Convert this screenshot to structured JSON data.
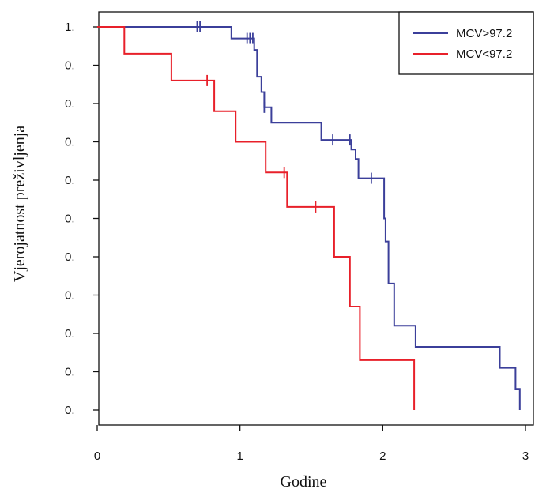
{
  "chart_data": {
    "type": "line",
    "title": "",
    "xlabel": "Godine",
    "ylabel": "Vjerojatnost preživljenja",
    "xlim": [
      0,
      3
    ],
    "ylim": [
      0,
      1
    ],
    "x_ticks": [
      "0",
      "1",
      "2",
      "3"
    ],
    "y_ticks": [
      {
        "value": 1.0,
        "label": "1."
      },
      {
        "value": 0.9,
        "label": "0."
      },
      {
        "value": 0.8,
        "label": "0."
      },
      {
        "value": 0.7,
        "label": "0."
      },
      {
        "value": 0.6,
        "label": "0."
      },
      {
        "value": 0.5,
        "label": "0."
      },
      {
        "value": 0.4,
        "label": "0."
      },
      {
        "value": 0.3,
        "label": "0."
      },
      {
        "value": 0.2,
        "label": "0."
      },
      {
        "value": 0.1,
        "label": "0."
      },
      {
        "value": 0.0,
        "label": "0."
      }
    ],
    "grid": false,
    "legend_position": "top-right",
    "series": [
      {
        "name": "MCV>97.2",
        "color": "#3b3f9a",
        "step_points": [
          [
            0.0,
            1.0
          ],
          [
            0.94,
            1.0
          ],
          [
            0.94,
            0.97
          ],
          [
            1.1,
            0.97
          ],
          [
            1.1,
            0.94
          ],
          [
            1.12,
            0.94
          ],
          [
            1.12,
            0.87
          ],
          [
            1.15,
            0.87
          ],
          [
            1.15,
            0.83
          ],
          [
            1.17,
            0.83
          ],
          [
            1.17,
            0.79
          ],
          [
            1.22,
            0.79
          ],
          [
            1.22,
            0.75
          ],
          [
            1.57,
            0.75
          ],
          [
            1.57,
            0.705
          ],
          [
            1.78,
            0.705
          ],
          [
            1.78,
            0.68
          ],
          [
            1.81,
            0.68
          ],
          [
            1.81,
            0.655
          ],
          [
            1.83,
            0.655
          ],
          [
            1.83,
            0.605
          ],
          [
            2.01,
            0.605
          ],
          [
            2.01,
            0.5
          ],
          [
            2.02,
            0.5
          ],
          [
            2.02,
            0.44
          ],
          [
            2.04,
            0.44
          ],
          [
            2.04,
            0.33
          ],
          [
            2.08,
            0.33
          ],
          [
            2.08,
            0.22
          ],
          [
            2.23,
            0.22
          ],
          [
            2.23,
            0.165
          ],
          [
            2.82,
            0.165
          ],
          [
            2.82,
            0.11
          ],
          [
            2.93,
            0.11
          ],
          [
            2.93,
            0.055
          ],
          [
            2.96,
            0.055
          ],
          [
            2.96,
            0.0
          ]
        ],
        "censor_x": [
          0.7,
          0.72,
          1.05,
          1.07,
          1.09,
          1.17,
          1.65,
          1.77,
          1.92
        ]
      },
      {
        "name": "MCV<97.2",
        "color": "#e8202a",
        "step_points": [
          [
            0.0,
            1.0
          ],
          [
            0.19,
            1.0
          ],
          [
            0.19,
            0.93
          ],
          [
            0.52,
            0.93
          ],
          [
            0.52,
            0.86
          ],
          [
            0.82,
            0.86
          ],
          [
            0.82,
            0.78
          ],
          [
            0.97,
            0.78
          ],
          [
            0.97,
            0.7
          ],
          [
            1.18,
            0.7
          ],
          [
            1.18,
            0.62
          ],
          [
            1.33,
            0.62
          ],
          [
            1.33,
            0.53
          ],
          [
            1.66,
            0.53
          ],
          [
            1.66,
            0.4
          ],
          [
            1.77,
            0.4
          ],
          [
            1.77,
            0.27
          ],
          [
            1.84,
            0.27
          ],
          [
            1.84,
            0.13
          ],
          [
            2.22,
            0.13
          ],
          [
            2.22,
            0.0
          ]
        ],
        "censor_x": [
          0.77,
          1.31,
          1.53
        ]
      }
    ]
  }
}
